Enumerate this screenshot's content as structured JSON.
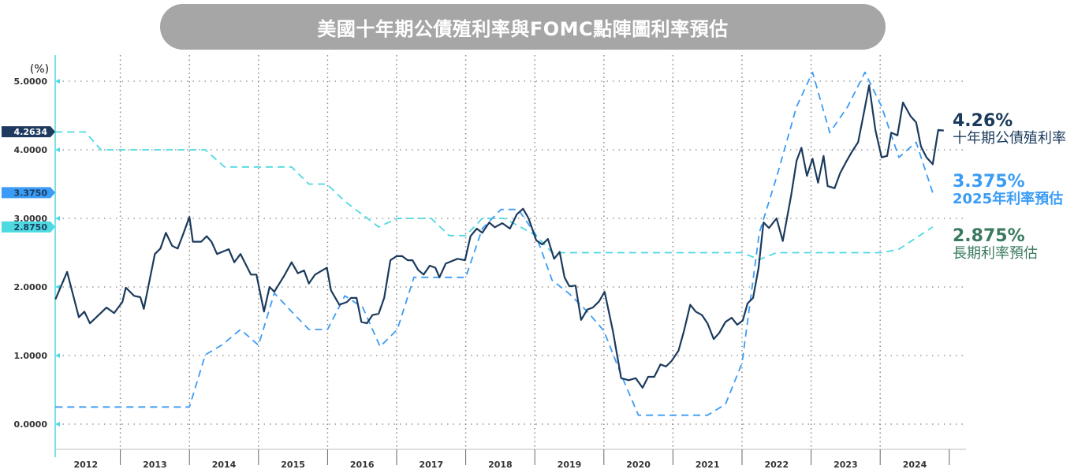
{
  "chart_data": {
    "type": "line",
    "title": "美國十年期公債殖利率與FOMC點陣圖利率預估",
    "ylabel": "(%)",
    "ylim": [
      0,
      5.2
    ],
    "xlim": [
      2012,
      2025
    ],
    "yticks": [
      "0.0000",
      "1.0000",
      "2.0000",
      "3.0000",
      "4.0000",
      "5.0000"
    ],
    "ytick_values": [
      0,
      1,
      2,
      3,
      4,
      5
    ],
    "xticks": [
      "2012",
      "2013",
      "2014",
      "2015",
      "2016",
      "2017",
      "2018",
      "2019",
      "2020",
      "2021",
      "2022",
      "2023",
      "2024"
    ],
    "grid": true,
    "axis_markers": [
      {
        "label": "4.2634",
        "value": 4.2634,
        "color": "#1f3a5f"
      },
      {
        "label": "3.3750",
        "value": 3.375,
        "color": "#3b9cf5"
      },
      {
        "label": "2.8750",
        "value": 2.875,
        "color": "#4dd9e0"
      }
    ],
    "series": [
      {
        "name": "十年期公債殖利率",
        "end_label": "4.26%",
        "color": "#1b3a5c",
        "style": "solid",
        "x": [
          2012.06,
          2012.23,
          2012.4,
          2012.48,
          2012.56,
          2012.8,
          2012.91,
          2013.03,
          2013.08,
          2013.2,
          2013.29,
          2013.34,
          2013.5,
          2013.58,
          2013.66,
          2013.75,
          2013.83,
          2013.91,
          2014.0,
          2014.05,
          2014.17,
          2014.25,
          2014.32,
          2014.4,
          2014.57,
          2014.65,
          2014.74,
          2014.89,
          2014.97,
          2015.08,
          2015.16,
          2015.23,
          2015.37,
          2015.48,
          2015.57,
          2015.66,
          2015.73,
          2015.82,
          2015.99,
          2016.05,
          2016.17,
          2016.28,
          2016.34,
          2016.42,
          2016.49,
          2016.57,
          2016.65,
          2016.74,
          2016.82,
          2016.91,
          2017.0,
          2017.08,
          2017.16,
          2017.23,
          2017.31,
          2017.39,
          2017.48,
          2017.56,
          2017.62,
          2017.71,
          2017.88,
          2017.99,
          2018.07,
          2018.16,
          2018.24,
          2018.34,
          2018.42,
          2018.53,
          2018.64,
          2018.74,
          2018.83,
          2018.91,
          2019.02,
          2019.11,
          2019.19,
          2019.28,
          2019.36,
          2019.43,
          2019.5,
          2019.59,
          2019.67,
          2019.76,
          2019.84,
          2019.93,
          2020.01,
          2020.13,
          2020.25,
          2020.36,
          2020.46,
          2020.56,
          2020.64,
          2020.73,
          2020.82,
          2020.9,
          2020.98,
          2021.08,
          2021.16,
          2021.25,
          2021.33,
          2021.42,
          2021.5,
          2021.59,
          2021.67,
          2021.76,
          2021.85,
          2021.93,
          2022.01,
          2022.08,
          2022.16,
          2022.24,
          2022.31,
          2022.39,
          2022.5,
          2022.59,
          2022.71,
          2022.79,
          2022.86,
          2022.94,
          2023.02,
          2023.1,
          2023.18,
          2023.24,
          2023.34,
          2023.42,
          2023.51,
          2023.59,
          2023.68,
          2023.76,
          2023.84,
          2023.93,
          2024.02,
          2024.1,
          2024.16,
          2024.25,
          2024.33,
          2024.44,
          2024.52,
          2024.59,
          2024.67,
          2024.76,
          2024.84,
          2024.92
        ],
        "values": [
          1.82,
          2.22,
          1.56,
          1.64,
          1.47,
          1.7,
          1.62,
          1.78,
          1.99,
          1.87,
          1.85,
          1.68,
          2.48,
          2.56,
          2.79,
          2.6,
          2.56,
          2.77,
          3.02,
          2.66,
          2.66,
          2.74,
          2.66,
          2.48,
          2.55,
          2.36,
          2.48,
          2.18,
          2.18,
          1.64,
          2.0,
          1.93,
          2.16,
          2.36,
          2.2,
          2.24,
          2.05,
          2.18,
          2.28,
          1.95,
          1.74,
          1.78,
          1.84,
          1.84,
          1.49,
          1.47,
          1.59,
          1.61,
          1.84,
          2.39,
          2.45,
          2.45,
          2.39,
          2.39,
          2.25,
          2.18,
          2.31,
          2.28,
          2.14,
          2.34,
          2.41,
          2.39,
          2.74,
          2.85,
          2.79,
          2.94,
          2.87,
          2.93,
          2.85,
          3.06,
          3.14,
          3.0,
          2.68,
          2.62,
          2.7,
          2.41,
          2.51,
          2.14,
          2.01,
          2.02,
          1.52,
          1.67,
          1.7,
          1.79,
          1.93,
          1.36,
          0.67,
          0.64,
          0.67,
          0.53,
          0.69,
          0.69,
          0.87,
          0.84,
          0.92,
          1.07,
          1.36,
          1.74,
          1.64,
          1.59,
          1.47,
          1.24,
          1.33,
          1.49,
          1.55,
          1.45,
          1.51,
          1.76,
          1.84,
          2.28,
          2.94,
          2.86,
          3.0,
          2.67,
          3.33,
          3.84,
          4.03,
          3.62,
          3.87,
          3.52,
          3.91,
          3.47,
          3.44,
          3.66,
          3.83,
          3.97,
          4.11,
          4.52,
          4.94,
          4.29,
          3.89,
          3.91,
          4.25,
          4.21,
          4.69,
          4.49,
          4.4,
          4.05,
          3.89,
          3.79,
          4.29,
          4.28
        ]
      },
      {
        "name": "2025年利率預估",
        "end_label": "3.375%",
        "color": "#3b9cf5",
        "style": "dashed",
        "x": [
          2012.06,
          2014.0,
          2014.23,
          2014.48,
          2014.74,
          2015.0,
          2015.23,
          2015.48,
          2015.73,
          2016.0,
          2016.25,
          2016.51,
          2016.76,
          2017.01,
          2017.25,
          2017.5,
          2018.0,
          2018.24,
          2018.51,
          2018.76,
          2019.01,
          2019.25,
          2019.5,
          2019.76,
          2020.0,
          2020.25,
          2020.5,
          2021.0,
          2021.5,
          2021.76,
          2022.0,
          2022.25,
          2022.5,
          2022.79,
          2023.02,
          2023.27,
          2023.53,
          2023.78,
          2024.02,
          2024.27,
          2024.52,
          2024.76
        ],
        "values": [
          0.25,
          0.25,
          1.01,
          1.16,
          1.38,
          1.15,
          1.91,
          1.64,
          1.38,
          1.38,
          1.87,
          1.7,
          1.13,
          1.38,
          2.14,
          2.14,
          2.14,
          2.85,
          3.13,
          3.13,
          2.77,
          2.1,
          1.9,
          1.64,
          1.36,
          0.72,
          0.13,
          0.13,
          0.13,
          0.29,
          0.89,
          2.79,
          3.6,
          4.63,
          5.13,
          4.25,
          4.63,
          5.13,
          4.63,
          3.89,
          4.11,
          3.375
        ]
      },
      {
        "name": "長期利率預估",
        "end_label": "2.875%",
        "color": "#4dd9e0",
        "label_color": "#3a7a5e",
        "style": "dashed",
        "x": [
          2012.06,
          2012.49,
          2012.72,
          2014.23,
          2014.51,
          2015.48,
          2015.73,
          2015.99,
          2016.25,
          2016.74,
          2017.01,
          2017.5,
          2017.76,
          2018.0,
          2018.24,
          2018.56,
          2019.02,
          2019.25,
          2022.0,
          2022.25,
          2022.5,
          2024.02,
          2024.27,
          2024.76
        ],
        "values": [
          4.26,
          4.26,
          4.0,
          4.0,
          3.75,
          3.75,
          3.5,
          3.5,
          3.25,
          2.875,
          3.0,
          3.0,
          2.75,
          2.75,
          3.0,
          3.0,
          2.75,
          2.5,
          2.5,
          2.4,
          2.5,
          2.5,
          2.55,
          2.875
        ]
      }
    ]
  }
}
